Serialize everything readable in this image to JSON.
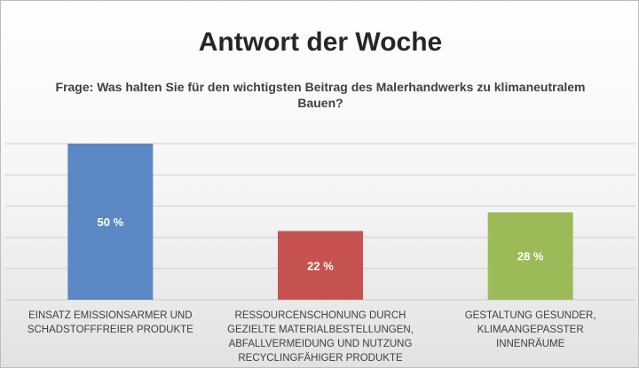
{
  "chart_data": {
    "type": "bar",
    "title": "Antwort der Woche",
    "subtitle": "Frage: Was halten Sie für den wichtigsten Beitrag des Malerhandwerks zu klimaneutralem Bauen?",
    "categories": [
      "EINSATZ EMISSIONSARMER UND SCHADSTOFFFREIER PRODUKTE",
      "RESSOURCENSCHONUNG DURCH GEZIELTE MATERIALBESTELLUNGEN, ABFALLVERMEIDUNG UND NUTZUNG RECYCLINGFÄHIGER PRODUKTE",
      "GESTALTUNG GESUNDER, KLIMAANGEPASSTER INNENRÄUME"
    ],
    "values": [
      50,
      22,
      28
    ],
    "data_labels": [
      "50 %",
      "22 %",
      "28 %"
    ],
    "colors": [
      "#5b87c5",
      "#c65350",
      "#9bbb59"
    ],
    "ylim": [
      0,
      60
    ],
    "grid": true,
    "xlabel": "",
    "ylabel": ""
  }
}
